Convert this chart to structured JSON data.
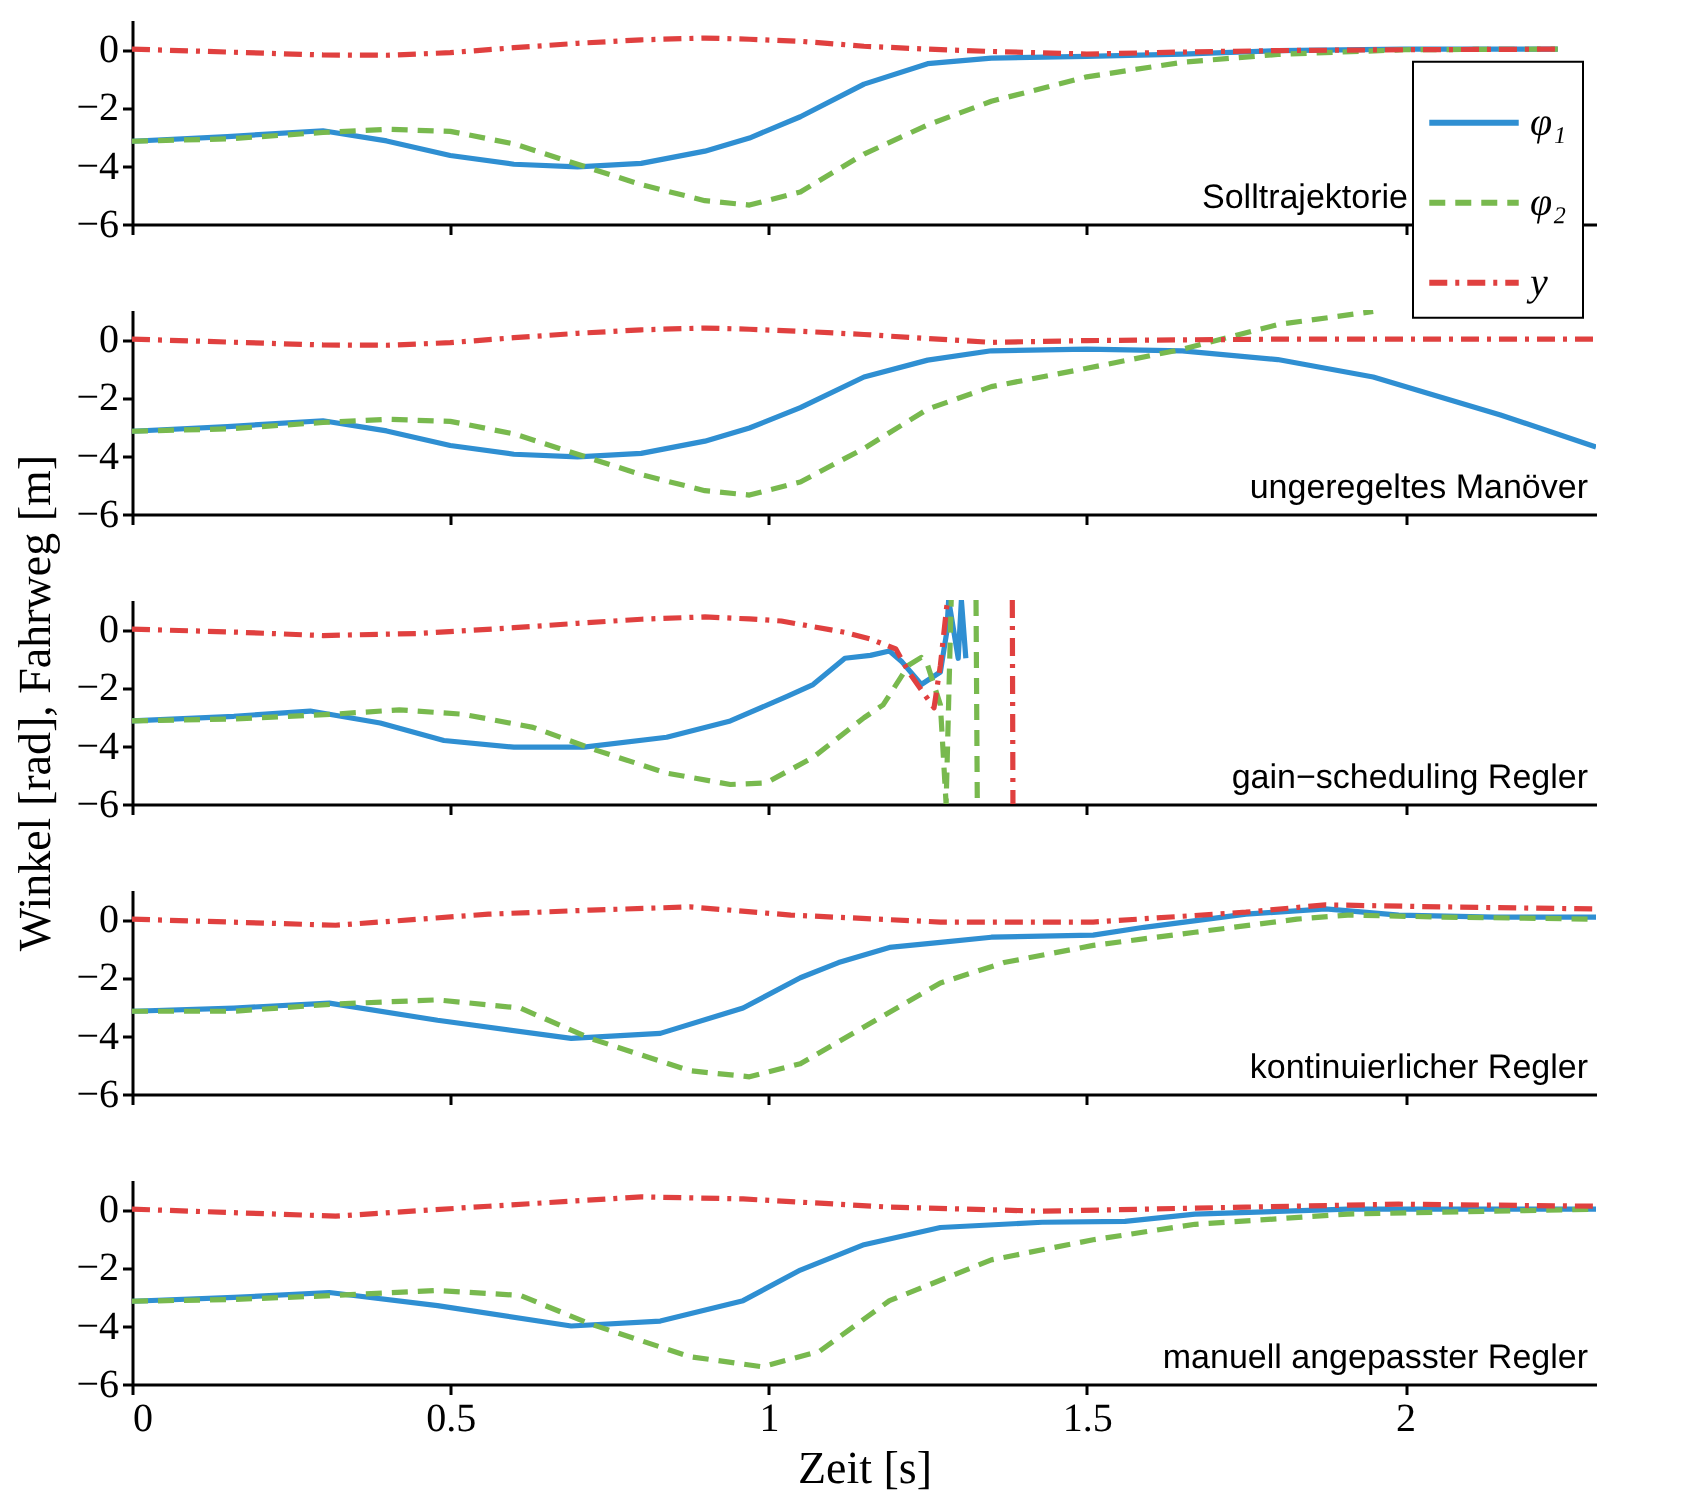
{
  "chart_data": [
    {
      "type": "line",
      "annotations": [
        "Solltrajektorie"
      ],
      "xlim": [
        0,
        2.3
      ],
      "ylim": [
        -6,
        1
      ],
      "xticks": [
        0,
        0.5,
        1,
        1.5,
        2
      ],
      "yticks": [
        -6,
        -4,
        -2,
        0
      ],
      "tick_labels": "y",
      "legend": "right",
      "series": [
        {
          "name": "φ₁",
          "color": "#2f8fd2",
          "line_style": "solid",
          "x": [
            0,
            0.15,
            0.3,
            0.4,
            0.5,
            0.6,
            0.7,
            0.8,
            0.9,
            0.97,
            1.05,
            1.15,
            1.25,
            1.35,
            1.5,
            1.65,
            1.8,
            2.0,
            2.24
          ],
          "values": [
            -3.16,
            -3.0,
            -2.8,
            -3.15,
            -3.65,
            -3.95,
            -4.04,
            -3.92,
            -3.5,
            -3.05,
            -2.32,
            -1.2,
            -0.5,
            -0.31,
            -0.25,
            -0.17,
            -0.05,
            0,
            0
          ]
        },
        {
          "name": "φ₂",
          "color": "#78b94e",
          "line_style": "dashed",
          "x": [
            0,
            0.15,
            0.3,
            0.4,
            0.5,
            0.6,
            0.7,
            0.8,
            0.9,
            0.97,
            1.05,
            1.15,
            1.25,
            1.35,
            1.5,
            1.65,
            1.8,
            2.0,
            2.24
          ],
          "values": [
            -3.16,
            -3.08,
            -2.86,
            -2.75,
            -2.82,
            -3.25,
            -3.95,
            -4.65,
            -5.2,
            -5.35,
            -4.9,
            -3.6,
            -2.6,
            -1.79,
            -0.95,
            -0.45,
            -0.18,
            -0.02,
            0
          ]
        },
        {
          "name": "y",
          "color": "#e0403f",
          "line_style": "dashdot",
          "x": [
            0,
            0.15,
            0.3,
            0.4,
            0.5,
            0.6,
            0.7,
            0.8,
            0.9,
            0.97,
            1.05,
            1.15,
            1.25,
            1.35,
            1.5,
            1.65,
            1.8,
            2.0,
            2.24
          ],
          "values": [
            0,
            -0.1,
            -0.2,
            -0.21,
            -0.12,
            0.05,
            0.2,
            0.32,
            0.38,
            0.34,
            0.27,
            0.1,
            0,
            -0.08,
            -0.17,
            -0.1,
            -0.05,
            -0.02,
            0
          ]
        }
      ]
    },
    {
      "type": "line",
      "annotations": [
        "ungeregeltes Manöver"
      ],
      "xlim": [
        0,
        2.3
      ],
      "ylim": [
        -6,
        1
      ],
      "xticks": [
        0,
        0.5,
        1,
        1.5,
        2
      ],
      "yticks": [
        -6,
        -4,
        -2,
        0
      ],
      "tick_labels": "y",
      "series": [
        {
          "color": "#2f8fd2",
          "line_style": "solid",
          "x": [
            0,
            0.15,
            0.3,
            0.4,
            0.5,
            0.6,
            0.7,
            0.8,
            0.9,
            0.97,
            1.05,
            1.15,
            1.25,
            1.35,
            1.5,
            1.65,
            1.8,
            1.95,
            2.15,
            2.3
          ],
          "values": [
            -3.16,
            -3.0,
            -2.8,
            -3.15,
            -3.65,
            -3.95,
            -4.04,
            -3.92,
            -3.5,
            -3.05,
            -2.35,
            -1.3,
            -0.72,
            -0.4,
            -0.34,
            -0.4,
            -0.7,
            -1.3,
            -2.6,
            -3.7
          ]
        },
        {
          "color": "#78b94e",
          "line_style": "dashed",
          "x": [
            0,
            0.15,
            0.3,
            0.4,
            0.5,
            0.6,
            0.7,
            0.8,
            0.9,
            0.97,
            1.05,
            1.15,
            1.25,
            1.35,
            1.5,
            1.65,
            1.8,
            1.95
          ],
          "values": [
            -3.16,
            -3.08,
            -2.86,
            -2.75,
            -2.82,
            -3.25,
            -3.95,
            -4.65,
            -5.2,
            -5.35,
            -4.9,
            -3.75,
            -2.4,
            -1.63,
            -1.0,
            -0.35,
            0.5,
            0.95
          ]
        },
        {
          "color": "#e0403f",
          "line_style": "dashdot",
          "x": [
            0,
            0.15,
            0.3,
            0.4,
            0.5,
            0.6,
            0.7,
            0.8,
            0.9,
            0.97,
            1.05,
            1.15,
            1.25,
            1.35,
            1.5,
            1.8,
            2.1,
            2.3
          ],
          "values": [
            0,
            -0.1,
            -0.2,
            -0.21,
            -0.12,
            0.05,
            0.2,
            0.32,
            0.38,
            0.34,
            0.27,
            0.16,
            0.02,
            -0.11,
            -0.05,
            0,
            0,
            0
          ]
        }
      ]
    },
    {
      "type": "line",
      "annotations": [
        "gain−scheduling Regler"
      ],
      "ylabel": "Winkel [rad], Fahrweg [m]",
      "xlim": [
        0,
        2.3
      ],
      "ylim": [
        -6,
        1
      ],
      "xticks": [
        0,
        0.5,
        1,
        1.5,
        2
      ],
      "yticks": [
        -6,
        -4,
        -2,
        0
      ],
      "tick_labels": "y",
      "series": [
        {
          "color": "#2f8fd2",
          "line_style": "solid",
          "x": [
            0,
            0.16,
            0.28,
            0.39,
            0.49,
            0.6,
            0.71,
            0.84,
            0.94,
            1.03,
            1.07,
            1.12,
            1.16,
            1.19,
            1.21,
            1.24,
            1.27,
            1.28,
            1.283,
            1.298,
            1.303,
            1.31
          ],
          "values": [
            -3.15,
            -2.99,
            -2.81,
            -3.22,
            -3.82,
            -4.05,
            -4.05,
            -3.71,
            -3.15,
            -2.3,
            -1.9,
            -1.0,
            -0.9,
            -0.75,
            -1.13,
            -1.9,
            -1.47,
            -0.1,
            1,
            -1.0,
            1,
            -1.0
          ]
        },
        {
          "color": "#78b94e",
          "line_style": "dashed",
          "x": [
            0,
            0.16,
            0.315,
            0.42,
            0.52,
            0.63,
            0.73,
            0.84,
            0.94,
            0.996,
            1.07,
            1.15,
            1.18,
            1.22,
            1.24,
            1.25,
            1.27,
            1.279,
            1.287,
            1.3,
            1.326,
            1.328
          ],
          "values": [
            -3.15,
            -3.08,
            -2.92,
            -2.77,
            -2.92,
            -3.37,
            -4.16,
            -4.94,
            -5.33,
            -5.28,
            -4.4,
            -3.04,
            -2.6,
            -1.24,
            -0.97,
            -1.24,
            -2.6,
            -6,
            1,
            null,
            1,
            -6
          ]
        },
        {
          "color": "#e0403f",
          "line_style": "dashdot",
          "x": [
            0,
            0.16,
            0.3,
            0.45,
            0.6,
            0.7,
            0.8,
            0.9,
            0.97,
            1.02,
            1.12,
            1.16,
            1.2,
            1.22,
            1.26,
            1.27,
            1.28,
            1.282,
            1.33,
            1.383,
            1.384
          ],
          "values": [
            0,
            -0.1,
            -0.22,
            -0.15,
            0.05,
            0.2,
            0.34,
            0.42,
            0.35,
            0.28,
            -0.11,
            -0.34,
            -0.68,
            -1.46,
            -2.7,
            -1.24,
            0.78,
            1,
            null,
            1,
            -6
          ]
        }
      ]
    },
    {
      "type": "line",
      "annotations": [
        "kontinuierlicher Regler"
      ],
      "xlim": [
        0,
        2.3
      ],
      "ylim": [
        -6,
        1
      ],
      "xticks": [
        0,
        0.5,
        1,
        1.5,
        2
      ],
      "yticks": [
        -6,
        -4,
        -2,
        0
      ],
      "tick_labels": "y",
      "series": [
        {
          "color": "#2f8fd2",
          "line_style": "solid",
          "x": [
            0,
            0.16,
            0.31,
            0.48,
            0.69,
            0.83,
            0.96,
            1.05,
            1.11,
            1.19,
            1.27,
            1.35,
            1.51,
            1.59,
            1.75,
            1.875,
            1.99,
            2.14,
            2.3
          ],
          "values": [
            -3.16,
            -3.05,
            -2.88,
            -3.47,
            -4.09,
            -3.92,
            -3.05,
            -2.01,
            -1.49,
            -0.97,
            -0.8,
            -0.62,
            -0.55,
            -0.28,
            0.17,
            0.35,
            0.14,
            0.07,
            0.07
          ]
        },
        {
          "color": "#78b94e",
          "line_style": "dashed",
          "x": [
            0,
            0.16,
            0.32,
            0.48,
            0.61,
            0.72,
            0.876,
            0.97,
            1.05,
            1.16,
            1.27,
            1.37,
            1.51,
            1.67,
            1.83,
            1.91,
            2.06,
            2.3
          ],
          "values": [
            -3.16,
            -3.16,
            -2.91,
            -2.77,
            -3.05,
            -4.09,
            -5.2,
            -5.41,
            -4.96,
            -3.57,
            -2.19,
            -1.49,
            -0.9,
            -0.45,
            0,
            0.14,
            0.07,
            0
          ]
        },
        {
          "color": "#e0403f",
          "line_style": "dashdot",
          "x": [
            0,
            0.32,
            0.56,
            0.72,
            0.876,
            1.035,
            1.27,
            1.51,
            1.75,
            1.875,
            2.06,
            2.3
          ],
          "values": [
            0,
            -0.21,
            0.17,
            0.31,
            0.42,
            0.14,
            -0.1,
            -0.1,
            0.24,
            0.49,
            0.42,
            0.35
          ]
        }
      ]
    },
    {
      "type": "line",
      "annotations": [
        "manuell angepasster Regler"
      ],
      "xlabel": "Zeit [s]",
      "xlim": [
        0,
        2.3
      ],
      "ylim": [
        -6,
        1
      ],
      "xticks": [
        0,
        0.5,
        1,
        1.5,
        2
      ],
      "yticks": [
        -6,
        -4,
        -2,
        0
      ],
      "series": [
        {
          "color": "#2f8fd2",
          "line_style": "solid",
          "x": [
            0,
            0.16,
            0.31,
            0.48,
            0.69,
            0.83,
            0.96,
            1.05,
            1.15,
            1.27,
            1.43,
            1.56,
            1.67,
            1.91,
            2.3
          ],
          "values": [
            -3.16,
            -3.03,
            -2.86,
            -3.31,
            -4.01,
            -3.84,
            -3.14,
            -2.09,
            -1.22,
            -0.63,
            -0.45,
            -0.42,
            -0.17,
            0,
            0
          ]
        },
        {
          "color": "#78b94e",
          "line_style": "dashed",
          "x": [
            0,
            0.16,
            0.32,
            0.48,
            0.61,
            0.72,
            0.876,
            0.99,
            1.08,
            1.19,
            1.35,
            1.51,
            1.67,
            1.91,
            2.3
          ],
          "values": [
            -3.16,
            -3.1,
            -2.96,
            -2.79,
            -2.96,
            -3.94,
            -5.06,
            -5.41,
            -4.88,
            -3.14,
            -1.74,
            -1.05,
            -0.52,
            -0.17,
            0
          ]
        },
        {
          "color": "#e0403f",
          "line_style": "dashdot",
          "x": [
            0,
            0.32,
            0.56,
            0.8,
            0.96,
            1.19,
            1.43,
            1.75,
            1.99,
            2.3
          ],
          "values": [
            0,
            -0.24,
            0.1,
            0.42,
            0.35,
            0.07,
            -0.07,
            0.07,
            0.17,
            0.1
          ]
        }
      ]
    }
  ]
}
